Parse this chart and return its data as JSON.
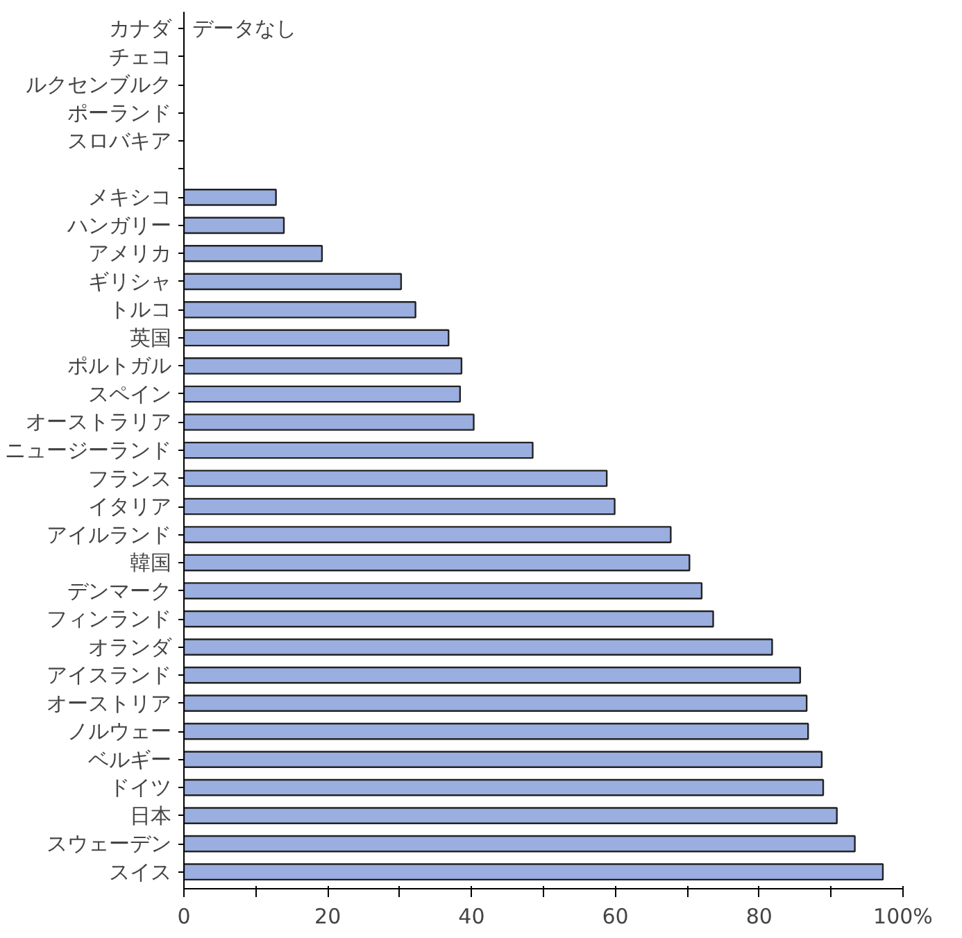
{
  "chart_data": {
    "type": "bar",
    "orientation": "horizontal",
    "categories": [
      "カナダ",
      "チェコ",
      "ルクセンブルク",
      "ポーランド",
      "スロバキア",
      null,
      "メキシコ",
      "ハンガリー",
      "アメリカ",
      "ギリシャ",
      "トルコ",
      "英国",
      "ポルトガル",
      "スペイン",
      "オーストラリア",
      "ニュージーランド",
      "フランス",
      "イタリア",
      "アイルランド",
      "韓国",
      "デンマーク",
      "フィンランド",
      "オランダ",
      "アイスランド",
      "オーストリア",
      "ノルウェー",
      "ベルギー",
      "ドイツ",
      "日本",
      "スウェーデン",
      "スイス"
    ],
    "values": [
      null,
      null,
      null,
      null,
      null,
      null,
      12.8,
      13.9,
      19.2,
      30.2,
      32.2,
      36.8,
      38.6,
      38.4,
      40.3,
      48.5,
      58.8,
      59.9,
      67.7,
      70.3,
      72.0,
      73.6,
      81.8,
      85.7,
      86.6,
      86.8,
      88.7,
      88.9,
      90.8,
      93.3,
      97.2
    ],
    "color": "#9aaee0",
    "xlim": [
      0,
      100
    ],
    "xticks": [
      0,
      {
        "value": 10,
        "label": null
      },
      20,
      {
        "value": 30,
        "label": null
      },
      40,
      {
        "value": 50,
        "label": null
      },
      60,
      {
        "value": 70,
        "label": null
      },
      80,
      {
        "value": 90,
        "label": null
      },
      {
        "value": 100,
        "label": "100%"
      }
    ],
    "annotations": [
      "データなし"
    ],
    "grid": false
  }
}
